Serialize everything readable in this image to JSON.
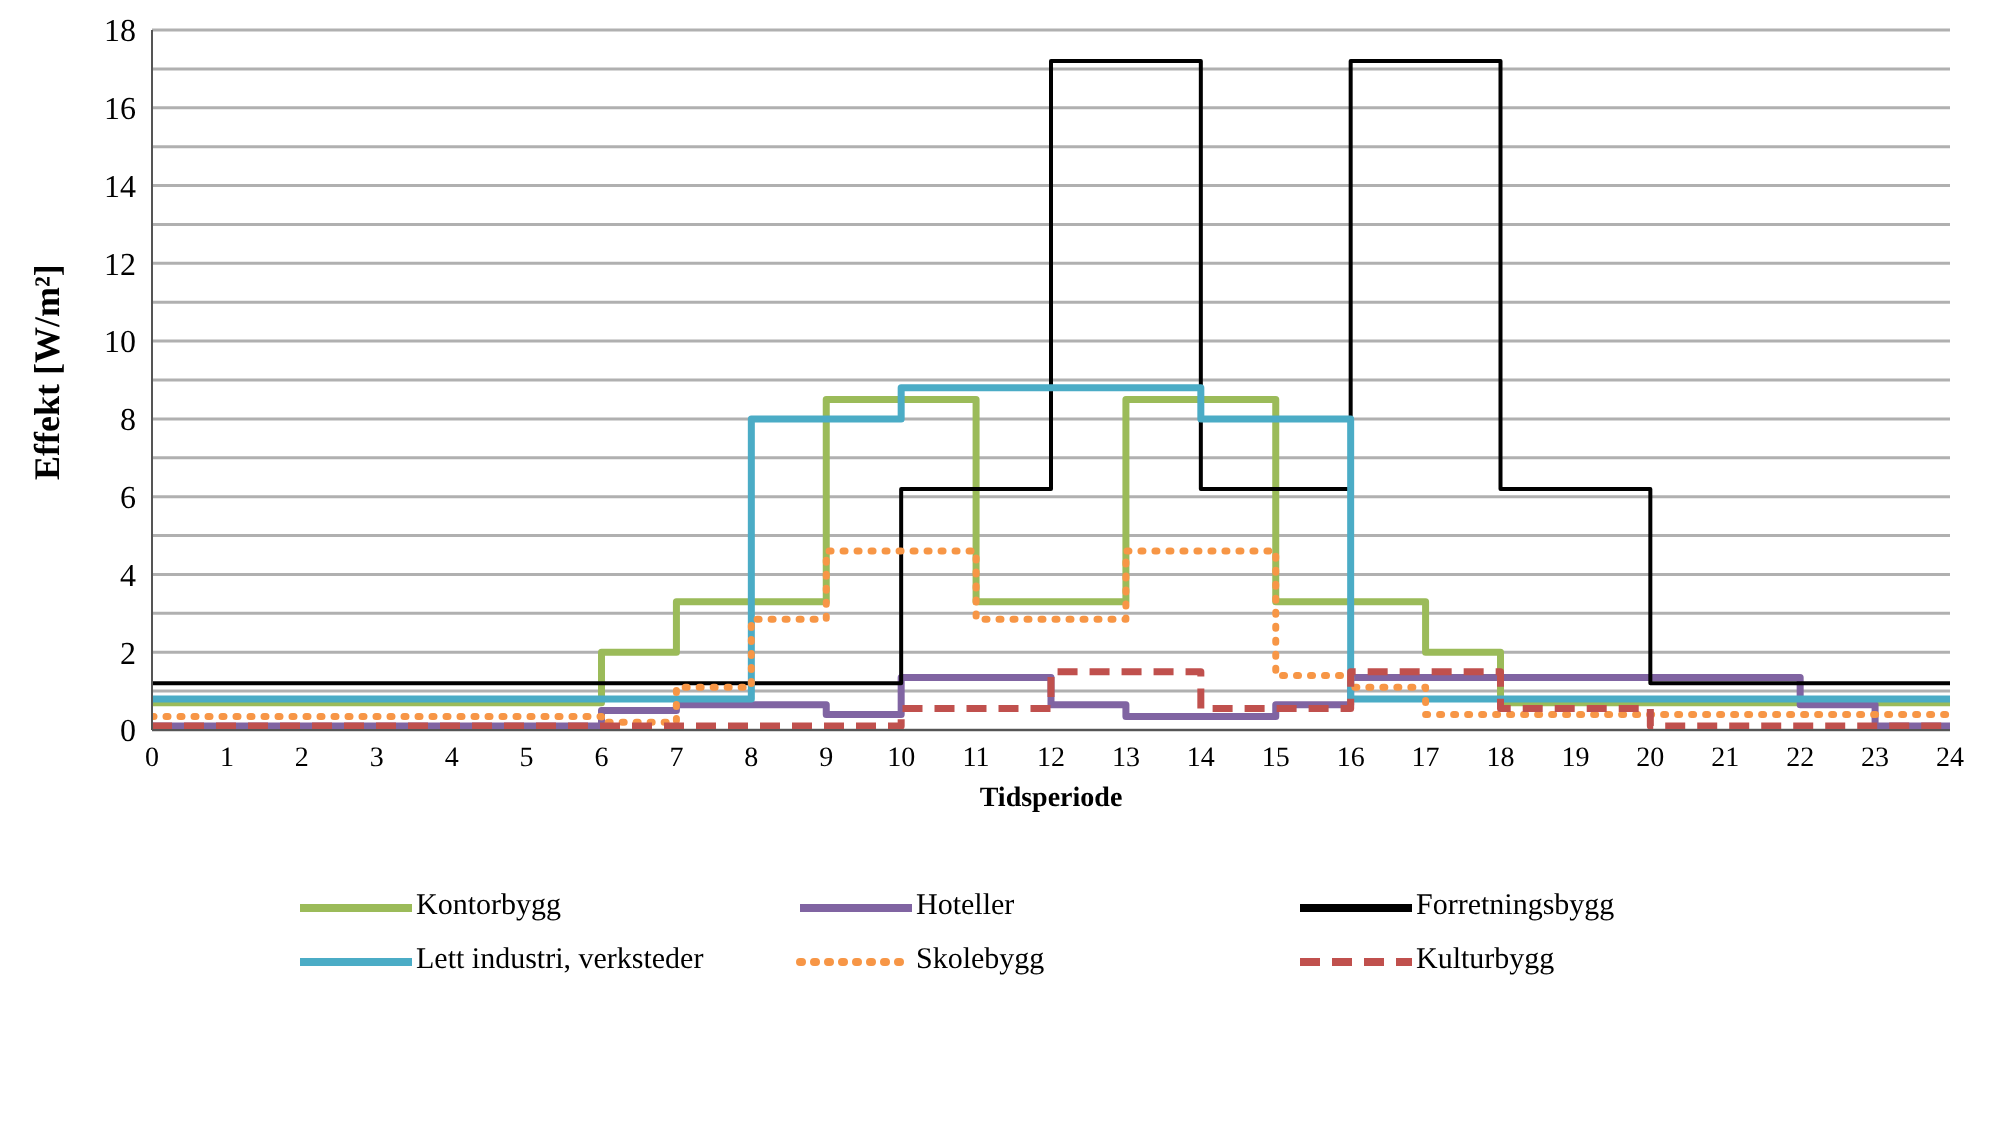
{
  "chart_data": {
    "type": "step",
    "xlabel": "Tidsperiode",
    "ylabel": "Effekt [W/m²]",
    "x": [
      0,
      1,
      2,
      3,
      4,
      5,
      6,
      7,
      8,
      9,
      10,
      11,
      12,
      13,
      14,
      15,
      16,
      17,
      18,
      19,
      20,
      21,
      22,
      23,
      24
    ],
    "series": [
      {
        "name": "Kontorbygg",
        "color": "#9bbb59",
        "line_style": "solid",
        "values": [
          0.7,
          0.7,
          0.7,
          0.7,
          0.7,
          0.7,
          2,
          3.3,
          3.3,
          8.5,
          8.5,
          3.3,
          3.3,
          8.5,
          8.5,
          3.3,
          3.3,
          2,
          0.7,
          0.7,
          0.7,
          0.7,
          0.7,
          0.7,
          0.7
        ]
      },
      {
        "name": "Hoteller",
        "color": "#8064a2",
        "line_style": "solid",
        "values": [
          0.1,
          0.1,
          0.1,
          0.1,
          0.1,
          0.1,
          0.5,
          0.65,
          0.65,
          0.4,
          1.35,
          1.35,
          0.65,
          0.35,
          0.35,
          0.65,
          1.35,
          1.35,
          1.35,
          1.35,
          1.35,
          1.35,
          0.65,
          0.1,
          0.1
        ]
      },
      {
        "name": "Forretningsbygg",
        "color": "#000000",
        "line_style": "solid",
        "values": [
          1.2,
          1.2,
          1.2,
          1.2,
          1.2,
          1.2,
          1.2,
          1.2,
          1.2,
          1.2,
          6.2,
          6.2,
          17.2,
          17.2,
          6.2,
          6.2,
          17.2,
          17.2,
          6.2,
          6.2,
          1.2,
          1.2,
          1.2,
          1.2,
          1.2
        ]
      },
      {
        "name": "Lett industri, verksteder",
        "color": "#4bacc6",
        "line_style": "solid",
        "values": [
          0.8,
          0.8,
          0.8,
          0.8,
          0.8,
          0.8,
          0.8,
          0.8,
          8,
          8,
          8.8,
          8.8,
          8.8,
          8.8,
          8,
          8,
          0.8,
          0.8,
          0.8,
          0.8,
          0.8,
          0.8,
          0.8,
          0.8,
          0.8
        ]
      },
      {
        "name": "Skolebygg",
        "color": "#f79646",
        "line_style": "dotted",
        "values": [
          0.35,
          0.35,
          0.35,
          0.35,
          0.35,
          0.35,
          0.2,
          1.1,
          2.85,
          4.6,
          4.6,
          2.85,
          2.85,
          4.6,
          4.6,
          1.4,
          1.1,
          0.4,
          0.4,
          0.4,
          0.4,
          0.4,
          0.4,
          0.4,
          0.4
        ]
      },
      {
        "name": "Kulturbygg",
        "color": "#c0504d",
        "line_style": "dashed",
        "values": [
          0.1,
          0.1,
          0.1,
          0.1,
          0.1,
          0.1,
          0.1,
          0.1,
          0.1,
          0.1,
          0.55,
          0.55,
          1.5,
          1.5,
          0.55,
          0.55,
          1.5,
          1.5,
          0.55,
          0.55,
          0.1,
          0.1,
          0.1,
          0.1,
          0.1
        ]
      }
    ],
    "xlim": [
      0,
      24
    ],
    "xticks": [
      0,
      1,
      2,
      3,
      4,
      5,
      6,
      7,
      8,
      9,
      10,
      11,
      12,
      13,
      14,
      15,
      16,
      17,
      18,
      19,
      20,
      21,
      22,
      23,
      24
    ],
    "ylim": [
      0,
      18
    ],
    "yticks": [
      0,
      {
        "value": 1,
        "label": null
      },
      2,
      {
        "value": 3,
        "label": null
      },
      4,
      {
        "value": 5,
        "label": null
      },
      6,
      {
        "value": 7,
        "label": null
      },
      8,
      {
        "value": 9,
        "label": null
      },
      10,
      {
        "value": 11,
        "label": null
      },
      12,
      {
        "value": 13,
        "label": null
      },
      14,
      {
        "value": 15,
        "label": null
      },
      16,
      {
        "value": 17,
        "label": null
      },
      18
    ],
    "grid": "y",
    "legend": "bottom",
    "marker": "none"
  }
}
